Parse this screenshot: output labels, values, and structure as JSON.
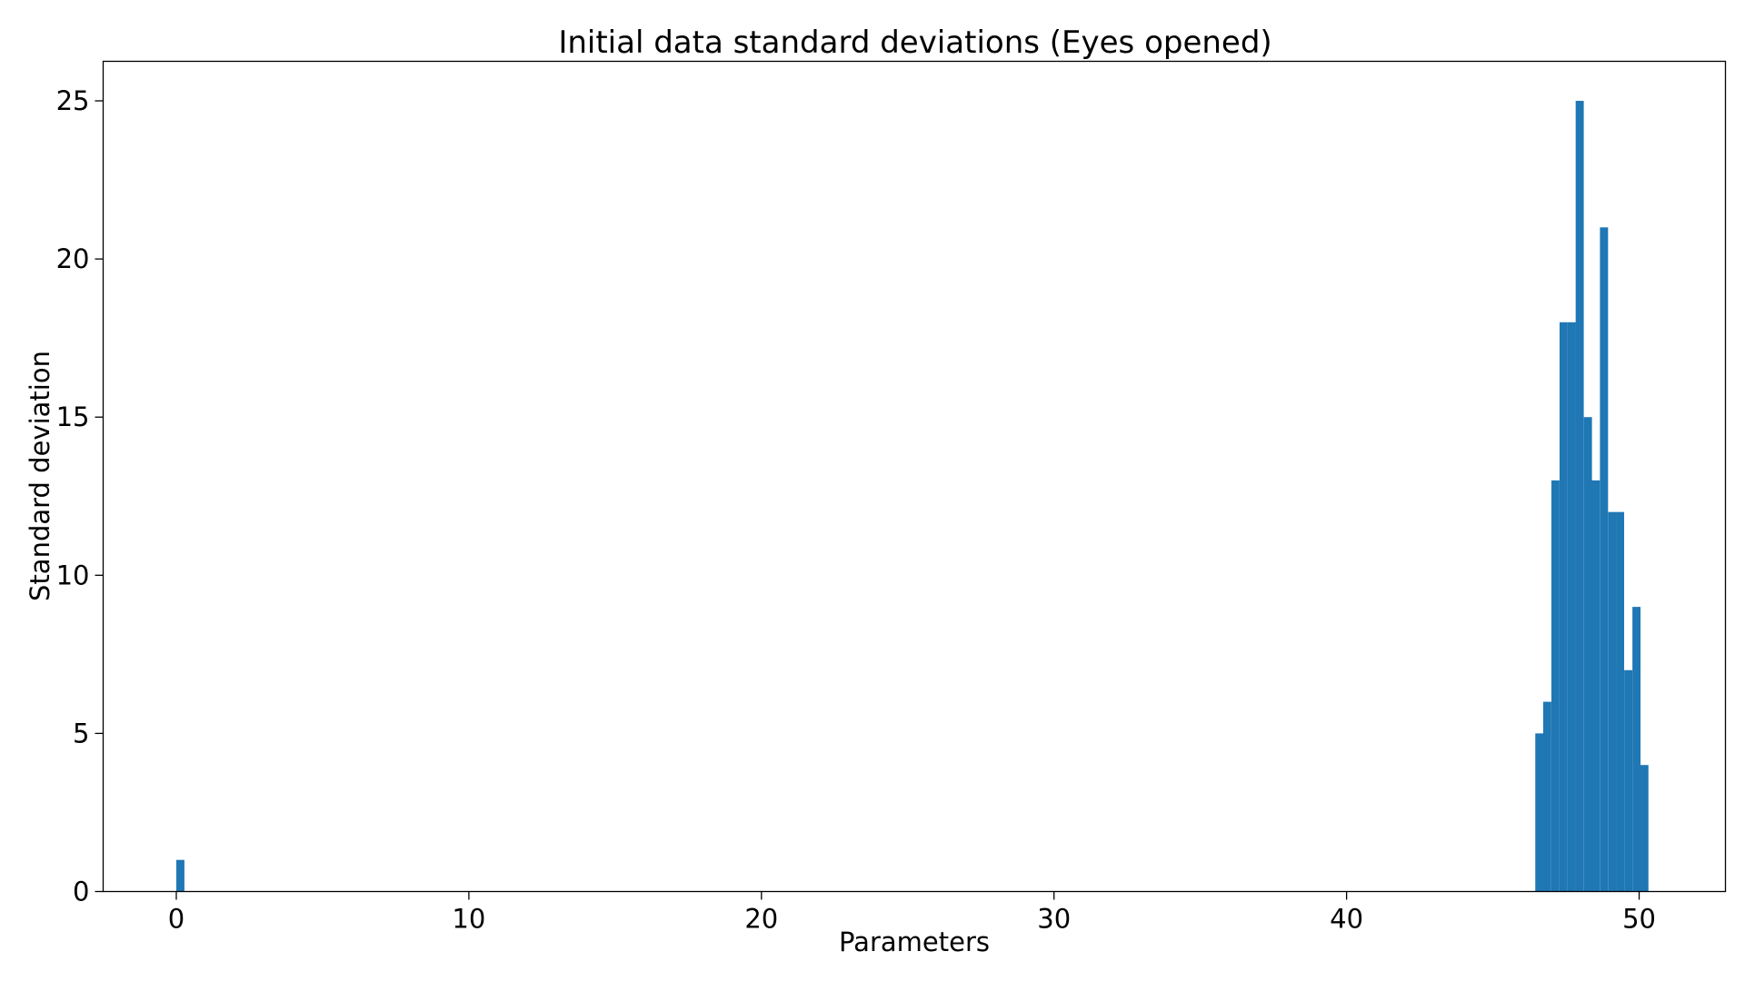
{
  "chart_data": {
    "type": "bar",
    "title": "Initial data standard deviations (Eyes opened)",
    "xlabel": "Parameters",
    "ylabel": "Standard deviation",
    "xlim": [
      -2.5,
      52.95
    ],
    "ylim": [
      0,
      26.25
    ],
    "xticks": [
      0,
      10,
      20,
      30,
      40,
      50
    ],
    "yticks": [
      0,
      5,
      10,
      15,
      20,
      25
    ],
    "bin_width": 0.277,
    "grid": false,
    "bar_color": "#1f77b4",
    "bins": [
      {
        "x": 0.0,
        "value": 1
      },
      {
        "x": 46.45,
        "value": 5
      },
      {
        "x": 46.72,
        "value": 6
      },
      {
        "x": 47.0,
        "value": 13
      },
      {
        "x": 47.28,
        "value": 18
      },
      {
        "x": 47.56,
        "value": 18
      },
      {
        "x": 47.83,
        "value": 25
      },
      {
        "x": 48.11,
        "value": 15
      },
      {
        "x": 48.38,
        "value": 13
      },
      {
        "x": 48.66,
        "value": 21
      },
      {
        "x": 48.94,
        "value": 12
      },
      {
        "x": 49.21,
        "value": 12
      },
      {
        "x": 49.49,
        "value": 7
      },
      {
        "x": 49.77,
        "value": 9
      },
      {
        "x": 50.04,
        "value": 4
      }
    ]
  }
}
